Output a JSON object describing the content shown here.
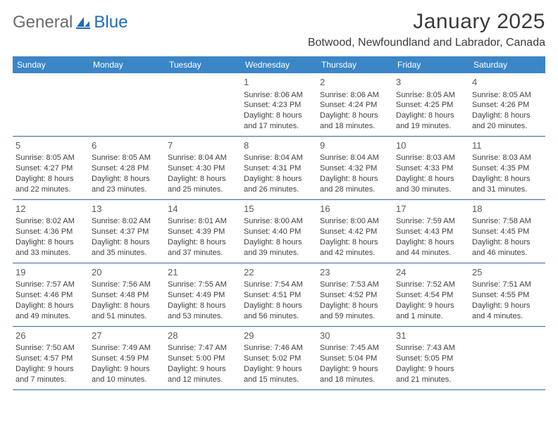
{
  "logo": {
    "general": "General",
    "blue": "Blue",
    "mark_color": "#1f6db5"
  },
  "header": {
    "month_title": "January 2025",
    "location": "Botwood, Newfoundland and Labrador, Canada"
  },
  "colors": {
    "header_bg": "#3b86c7",
    "header_text": "#ffffff",
    "row_border": "#2f6aa3",
    "body_text": "#404040",
    "daynum_text": "#5a5a5a"
  },
  "day_names": [
    "Sunday",
    "Monday",
    "Tuesday",
    "Wednesday",
    "Thursday",
    "Friday",
    "Saturday"
  ],
  "weeks": [
    [
      null,
      null,
      null,
      {
        "n": "1",
        "sr": "8:06 AM",
        "ss": "4:23 PM",
        "dl": "8 hours and 17 minutes."
      },
      {
        "n": "2",
        "sr": "8:06 AM",
        "ss": "4:24 PM",
        "dl": "8 hours and 18 minutes."
      },
      {
        "n": "3",
        "sr": "8:05 AM",
        "ss": "4:25 PM",
        "dl": "8 hours and 19 minutes."
      },
      {
        "n": "4",
        "sr": "8:05 AM",
        "ss": "4:26 PM",
        "dl": "8 hours and 20 minutes."
      }
    ],
    [
      {
        "n": "5",
        "sr": "8:05 AM",
        "ss": "4:27 PM",
        "dl": "8 hours and 22 minutes."
      },
      {
        "n": "6",
        "sr": "8:05 AM",
        "ss": "4:28 PM",
        "dl": "8 hours and 23 minutes."
      },
      {
        "n": "7",
        "sr": "8:04 AM",
        "ss": "4:30 PM",
        "dl": "8 hours and 25 minutes."
      },
      {
        "n": "8",
        "sr": "8:04 AM",
        "ss": "4:31 PM",
        "dl": "8 hours and 26 minutes."
      },
      {
        "n": "9",
        "sr": "8:04 AM",
        "ss": "4:32 PM",
        "dl": "8 hours and 28 minutes."
      },
      {
        "n": "10",
        "sr": "8:03 AM",
        "ss": "4:33 PM",
        "dl": "8 hours and 30 minutes."
      },
      {
        "n": "11",
        "sr": "8:03 AM",
        "ss": "4:35 PM",
        "dl": "8 hours and 31 minutes."
      }
    ],
    [
      {
        "n": "12",
        "sr": "8:02 AM",
        "ss": "4:36 PM",
        "dl": "8 hours and 33 minutes."
      },
      {
        "n": "13",
        "sr": "8:02 AM",
        "ss": "4:37 PM",
        "dl": "8 hours and 35 minutes."
      },
      {
        "n": "14",
        "sr": "8:01 AM",
        "ss": "4:39 PM",
        "dl": "8 hours and 37 minutes."
      },
      {
        "n": "15",
        "sr": "8:00 AM",
        "ss": "4:40 PM",
        "dl": "8 hours and 39 minutes."
      },
      {
        "n": "16",
        "sr": "8:00 AM",
        "ss": "4:42 PM",
        "dl": "8 hours and 42 minutes."
      },
      {
        "n": "17",
        "sr": "7:59 AM",
        "ss": "4:43 PM",
        "dl": "8 hours and 44 minutes."
      },
      {
        "n": "18",
        "sr": "7:58 AM",
        "ss": "4:45 PM",
        "dl": "8 hours and 46 minutes."
      }
    ],
    [
      {
        "n": "19",
        "sr": "7:57 AM",
        "ss": "4:46 PM",
        "dl": "8 hours and 49 minutes."
      },
      {
        "n": "20",
        "sr": "7:56 AM",
        "ss": "4:48 PM",
        "dl": "8 hours and 51 minutes."
      },
      {
        "n": "21",
        "sr": "7:55 AM",
        "ss": "4:49 PM",
        "dl": "8 hours and 53 minutes."
      },
      {
        "n": "22",
        "sr": "7:54 AM",
        "ss": "4:51 PM",
        "dl": "8 hours and 56 minutes."
      },
      {
        "n": "23",
        "sr": "7:53 AM",
        "ss": "4:52 PM",
        "dl": "8 hours and 59 minutes."
      },
      {
        "n": "24",
        "sr": "7:52 AM",
        "ss": "4:54 PM",
        "dl": "9 hours and 1 minute."
      },
      {
        "n": "25",
        "sr": "7:51 AM",
        "ss": "4:55 PM",
        "dl": "9 hours and 4 minutes."
      }
    ],
    [
      {
        "n": "26",
        "sr": "7:50 AM",
        "ss": "4:57 PM",
        "dl": "9 hours and 7 minutes."
      },
      {
        "n": "27",
        "sr": "7:49 AM",
        "ss": "4:59 PM",
        "dl": "9 hours and 10 minutes."
      },
      {
        "n": "28",
        "sr": "7:47 AM",
        "ss": "5:00 PM",
        "dl": "9 hours and 12 minutes."
      },
      {
        "n": "29",
        "sr": "7:46 AM",
        "ss": "5:02 PM",
        "dl": "9 hours and 15 minutes."
      },
      {
        "n": "30",
        "sr": "7:45 AM",
        "ss": "5:04 PM",
        "dl": "9 hours and 18 minutes."
      },
      {
        "n": "31",
        "sr": "7:43 AM",
        "ss": "5:05 PM",
        "dl": "9 hours and 21 minutes."
      },
      null
    ]
  ],
  "labels": {
    "sunrise": "Sunrise:",
    "sunset": "Sunset:",
    "daylight": "Daylight:"
  }
}
